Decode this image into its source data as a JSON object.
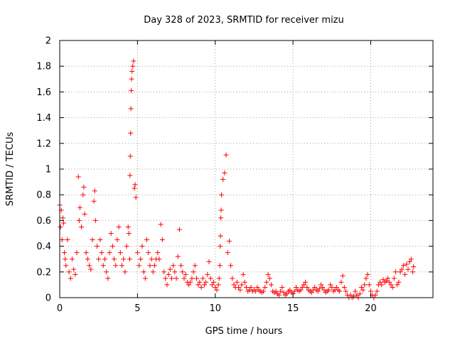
{
  "chart_data": {
    "type": "scatter",
    "title": "Day 328 of 2023, SRMTID for receiver mizu",
    "xlabel": "GPS time / hours",
    "ylabel": "SRMTID / TECUs",
    "xlim": [
      0,
      24
    ],
    "ylim": [
      0,
      2
    ],
    "x_ticks": [
      0,
      5,
      10,
      15,
      20
    ],
    "x_tick_labels": [
      "0",
      "5",
      "10",
      "15",
      "20"
    ],
    "y_ticks": [
      0,
      0.2,
      0.4,
      0.6,
      0.8,
      1,
      1.2,
      1.4,
      1.6,
      1.8,
      2
    ],
    "y_tick_labels": [
      "0",
      "0.2",
      "0.4",
      "0.6",
      "0.8",
      "1",
      "1.2",
      "1.4",
      "1.6",
      "1.8",
      "2"
    ],
    "grid": true,
    "marker": "+",
    "series": [
      {
        "name": "SRMTID",
        "color": "#ff0000",
        "x": [
          0.0,
          0.05,
          0.1,
          0.15,
          0.2,
          0.25,
          0.3,
          0.35,
          0.4,
          0.5,
          0.6,
          0.7,
          0.8,
          0.9,
          1.0,
          1.1,
          1.2,
          1.25,
          1.3,
          1.4,
          1.5,
          1.55,
          1.6,
          1.7,
          1.8,
          1.9,
          2.0,
          2.1,
          2.2,
          2.25,
          2.3,
          2.4,
          2.5,
          2.6,
          2.7,
          2.8,
          2.9,
          3.0,
          3.1,
          3.2,
          3.3,
          3.4,
          3.5,
          3.6,
          3.7,
          3.8,
          3.9,
          4.0,
          4.1,
          4.2,
          4.3,
          4.4,
          4.45,
          4.5,
          4.52,
          4.54,
          4.56,
          4.58,
          4.6,
          4.62,
          4.65,
          4.7,
          4.75,
          4.8,
          4.85,
          4.9,
          5.0,
          5.1,
          5.2,
          5.3,
          5.4,
          5.5,
          5.6,
          5.7,
          5.8,
          5.9,
          6.0,
          6.1,
          6.2,
          6.3,
          6.4,
          6.5,
          6.6,
          6.7,
          6.8,
          6.9,
          7.0,
          7.1,
          7.2,
          7.3,
          7.4,
          7.5,
          7.6,
          7.7,
          7.8,
          7.9,
          8.0,
          8.1,
          8.2,
          8.3,
          8.4,
          8.5,
          8.6,
          8.7,
          8.8,
          8.9,
          9.0,
          9.1,
          9.2,
          9.3,
          9.4,
          9.5,
          9.6,
          9.7,
          9.8,
          9.9,
          10.0,
          10.1,
          10.2,
          10.25,
          10.3,
          10.32,
          10.34,
          10.36,
          10.38,
          10.4,
          10.5,
          10.6,
          10.7,
          10.8,
          10.9,
          11.0,
          11.1,
          11.2,
          11.3,
          11.4,
          11.5,
          11.6,
          11.7,
          11.8,
          11.9,
          12.0,
          12.1,
          12.2,
          12.3,
          12.4,
          12.5,
          12.6,
          12.7,
          12.8,
          12.9,
          13.0,
          13.1,
          13.2,
          13.3,
          13.4,
          13.5,
          13.6,
          13.7,
          13.8,
          13.9,
          14.0,
          14.1,
          14.2,
          14.3,
          14.4,
          14.5,
          14.6,
          14.7,
          14.8,
          14.9,
          15.0,
          15.1,
          15.2,
          15.3,
          15.4,
          15.5,
          15.6,
          15.7,
          15.8,
          15.9,
          16.0,
          16.1,
          16.2,
          16.3,
          16.4,
          16.5,
          16.6,
          16.7,
          16.8,
          16.9,
          17.0,
          17.1,
          17.2,
          17.3,
          17.4,
          17.5,
          17.6,
          17.7,
          17.8,
          17.9,
          18.0,
          18.1,
          18.2,
          18.3,
          18.4,
          18.5,
          18.6,
          18.7,
          18.8,
          18.9,
          19.0,
          19.1,
          19.2,
          19.3,
          19.4,
          19.5,
          19.6,
          19.7,
          19.8,
          19.9,
          20.0,
          20.1,
          20.2,
          20.3,
          20.4,
          20.5,
          20.6,
          20.7,
          20.8,
          20.9,
          21.0,
          21.1,
          21.2,
          21.3,
          21.4,
          21.5,
          21.6,
          21.7,
          21.8,
          21.9,
          22.0,
          22.1,
          22.2,
          22.3,
          22.4,
          22.5,
          22.6,
          22.7,
          22.75
        ],
        "y": [
          0.72,
          0.55,
          0.68,
          0.45,
          0.62,
          0.58,
          0.35,
          0.3,
          0.25,
          0.45,
          0.2,
          0.15,
          0.3,
          0.22,
          0.18,
          0.35,
          0.94,
          0.6,
          0.7,
          0.55,
          0.8,
          0.86,
          0.65,
          0.35,
          0.3,
          0.25,
          0.22,
          0.45,
          0.75,
          0.83,
          0.6,
          0.4,
          0.3,
          0.45,
          0.35,
          0.25,
          0.3,
          0.2,
          0.15,
          0.35,
          0.5,
          0.4,
          0.3,
          0.25,
          0.45,
          0.55,
          0.35,
          0.25,
          0.3,
          0.2,
          0.4,
          0.55,
          0.5,
          0.3,
          0.95,
          1.1,
          1.28,
          1.47,
          1.61,
          1.7,
          1.76,
          1.8,
          1.84,
          0.85,
          0.88,
          0.78,
          0.35,
          0.25,
          0.3,
          0.4,
          0.2,
          0.15,
          0.45,
          0.35,
          0.25,
          0.3,
          0.2,
          0.25,
          0.3,
          0.35,
          0.3,
          0.57,
          0.45,
          0.2,
          0.15,
          0.1,
          0.18,
          0.22,
          0.15,
          0.25,
          0.2,
          0.15,
          0.32,
          0.53,
          0.25,
          0.2,
          0.15,
          0.18,
          0.12,
          0.1,
          0.12,
          0.15,
          0.2,
          0.25,
          0.15,
          0.1,
          0.12,
          0.08,
          0.15,
          0.1,
          0.12,
          0.18,
          0.28,
          0.15,
          0.1,
          0.12,
          0.08,
          0.06,
          0.1,
          0.15,
          0.25,
          0.4,
          0.48,
          0.62,
          0.68,
          0.8,
          0.92,
          0.97,
          1.11,
          0.35,
          0.44,
          0.25,
          0.15,
          0.1,
          0.08,
          0.12,
          0.08,
          0.06,
          0.1,
          0.18,
          0.12,
          0.08,
          0.05,
          0.06,
          0.08,
          0.05,
          0.06,
          0.05,
          0.08,
          0.06,
          0.05,
          0.04,
          0.05,
          0.08,
          0.12,
          0.18,
          0.15,
          0.1,
          0.05,
          0.04,
          0.05,
          0.03,
          0.02,
          0.05,
          0.08,
          0.04,
          0.02,
          0.03,
          0.05,
          0.06,
          0.04,
          0.03,
          0.05,
          0.08,
          0.06,
          0.05,
          0.06,
          0.08,
          0.1,
          0.12,
          0.08,
          0.06,
          0.05,
          0.04,
          0.06,
          0.08,
          0.06,
          0.05,
          0.07,
          0.1,
          0.08,
          0.06,
          0.04,
          0.05,
          0.06,
          0.1,
          0.08,
          0.05,
          0.06,
          0.08,
          0.06,
          0.05,
          0.12,
          0.17,
          0.08,
          0.05,
          0.02,
          0.0,
          0.02,
          0.0,
          0.01,
          0.05,
          0.02,
          0.0,
          0.03,
          0.08,
          0.06,
          0.1,
          0.15,
          0.18,
          0.1,
          0.05,
          0.02,
          0.0,
          0.02,
          0.05,
          0.1,
          0.12,
          0.1,
          0.14,
          0.12,
          0.13,
          0.15,
          0.12,
          0.1,
          0.08,
          0.15,
          0.2,
          0.1,
          0.12,
          0.2,
          0.22,
          0.25,
          0.18,
          0.26,
          0.22,
          0.28,
          0.3,
          0.2,
          0.24
        ]
      }
    ]
  }
}
